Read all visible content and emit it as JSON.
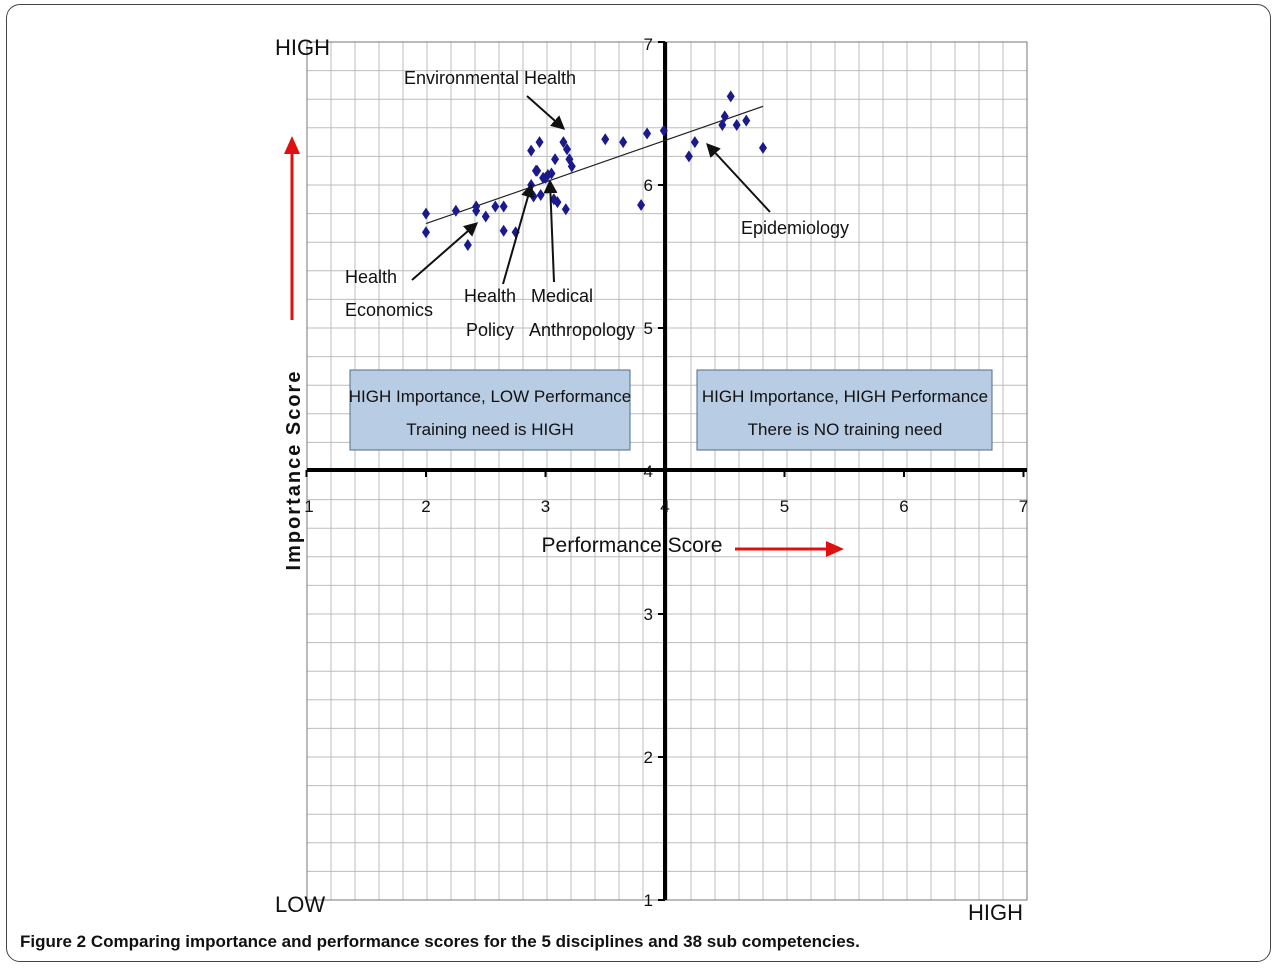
{
  "caption": {
    "label": "Figure 2",
    "text": "Comparing importance and performance scores for the 5 disciplines and 38 sub competencies."
  },
  "chart_data": {
    "type": "scatter",
    "xlabel": "Performance Score",
    "ylabel": "Importance Score",
    "xlim": [
      1,
      7
    ],
    "ylim": [
      1,
      7
    ],
    "x_ticks": [
      "1",
      "2",
      "3",
      "4",
      "5",
      "6",
      "7"
    ],
    "y_ticks": [
      "1",
      "2",
      "3",
      "4",
      "5",
      "6",
      "7"
    ],
    "grid": true,
    "corner_labels": {
      "top_left": "HIGH",
      "bottom_left": "LOW",
      "bottom_right": "HIGH"
    },
    "quadrant_boxes": [
      {
        "line1": "HIGH Importance, LOW Performance",
        "line2": "Training need is HIGH"
      },
      {
        "line1": "HIGH Importance, HIGH Performance",
        "line2": "There is NO training need"
      }
    ],
    "annotations": [
      {
        "text": [
          "Environmental Health"
        ],
        "x": 3.2,
        "y": 6.35
      },
      {
        "text": [
          "Epidemiology"
        ],
        "x": 4.3,
        "y": 6.3
      },
      {
        "text": [
          "Health",
          "Economics"
        ],
        "x": 2.45,
        "y": 5.8
      },
      {
        "text": [
          "Health",
          "Policy"
        ],
        "x": 2.92,
        "y": 6.02
      },
      {
        "text": [
          "Medical",
          "Anthropology"
        ],
        "x": 3.05,
        "y": 6.05
      }
    ],
    "trendline": {
      "x": [
        2.0,
        4.82
      ],
      "y": [
        5.73,
        6.55
      ]
    },
    "series": [
      {
        "marker": "diamond",
        "color": "#1a1a8c",
        "points": [
          [
            2.0,
            5.8
          ],
          [
            2.0,
            5.67
          ],
          [
            2.25,
            5.82
          ],
          [
            2.35,
            5.58
          ],
          [
            2.42,
            5.85
          ],
          [
            2.42,
            5.82
          ],
          [
            2.5,
            5.78
          ],
          [
            2.58,
            5.85
          ],
          [
            2.65,
            5.85
          ],
          [
            2.65,
            5.68
          ],
          [
            2.75,
            5.67
          ],
          [
            2.88,
            6.24
          ],
          [
            2.88,
            6.0
          ],
          [
            2.9,
            5.92
          ],
          [
            2.92,
            6.1
          ],
          [
            2.93,
            6.1
          ],
          [
            2.95,
            6.3
          ],
          [
            2.96,
            5.93
          ],
          [
            2.98,
            6.05
          ],
          [
            3.0,
            6.05
          ],
          [
            3.02,
            6.07
          ],
          [
            3.05,
            6.08
          ],
          [
            3.07,
            5.9
          ],
          [
            3.08,
            6.18
          ],
          [
            3.1,
            5.88
          ],
          [
            3.15,
            6.3
          ],
          [
            3.17,
            5.83
          ],
          [
            3.18,
            6.25
          ],
          [
            3.2,
            6.18
          ],
          [
            3.22,
            6.13
          ],
          [
            3.5,
            6.32
          ],
          [
            3.8,
            5.86
          ],
          [
            3.85,
            6.36
          ],
          [
            3.65,
            6.3
          ],
          [
            3.99,
            6.38
          ],
          [
            4.2,
            6.2
          ],
          [
            4.25,
            6.3
          ],
          [
            4.48,
            6.42
          ],
          [
            4.5,
            6.48
          ],
          [
            4.55,
            6.62
          ],
          [
            4.6,
            6.42
          ],
          [
            4.68,
            6.45
          ],
          [
            4.82,
            6.26
          ]
        ]
      }
    ]
  }
}
